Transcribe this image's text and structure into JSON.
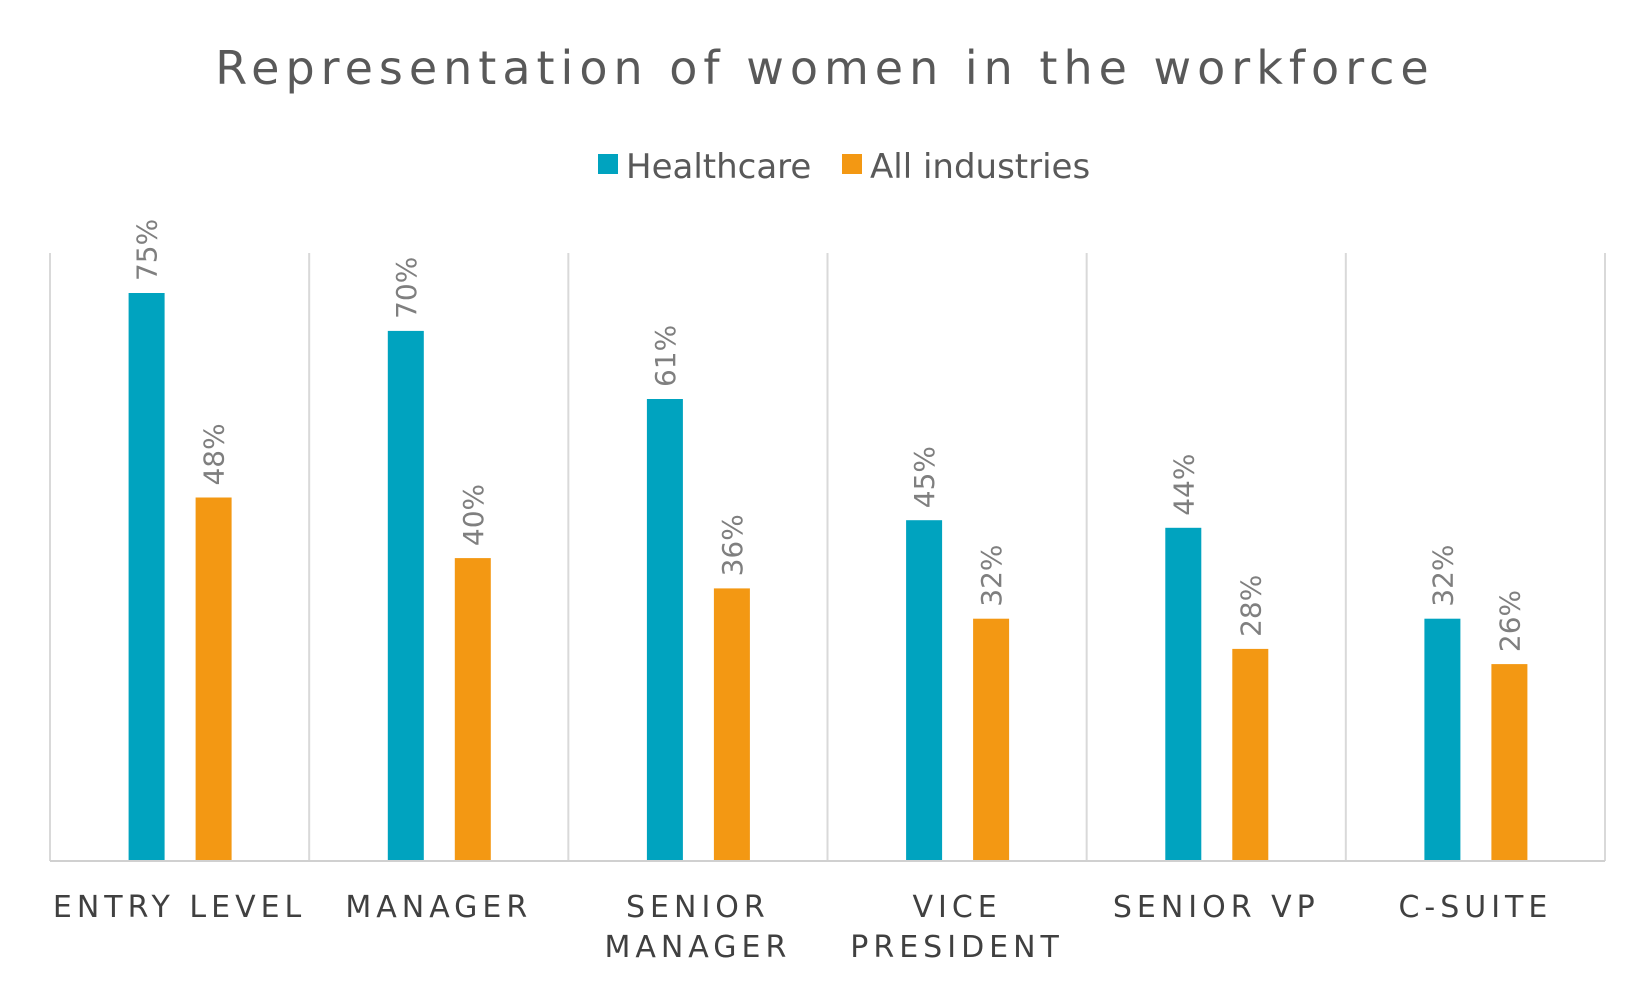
{
  "chart_data": {
    "type": "bar",
    "title": "Representation of women in the workforce",
    "categories": [
      [
        "ENTRY LEVEL"
      ],
      [
        "MANAGER"
      ],
      [
        "SENIOR",
        "MANAGER"
      ],
      [
        "VICE",
        "PRESIDENT"
      ],
      [
        "SENIOR VP"
      ],
      [
        "C-SUITE"
      ]
    ],
    "series": [
      {
        "name": "Healthcare",
        "color": "#00A3BF",
        "values": [
          75,
          70,
          61,
          45,
          44,
          32
        ],
        "labels": [
          "75%",
          "70%",
          "61%",
          "45%",
          "44%",
          "32%"
        ]
      },
      {
        "name": "All industries",
        "color": "#F39813",
        "values": [
          48,
          40,
          36,
          32,
          28,
          26
        ],
        "labels": [
          "48%",
          "40%",
          "36%",
          "32%",
          "28%",
          "26%"
        ]
      }
    ],
    "ylim": [
      0,
      80
    ],
    "legend_position": "top-center",
    "grid": "vertical separators"
  }
}
